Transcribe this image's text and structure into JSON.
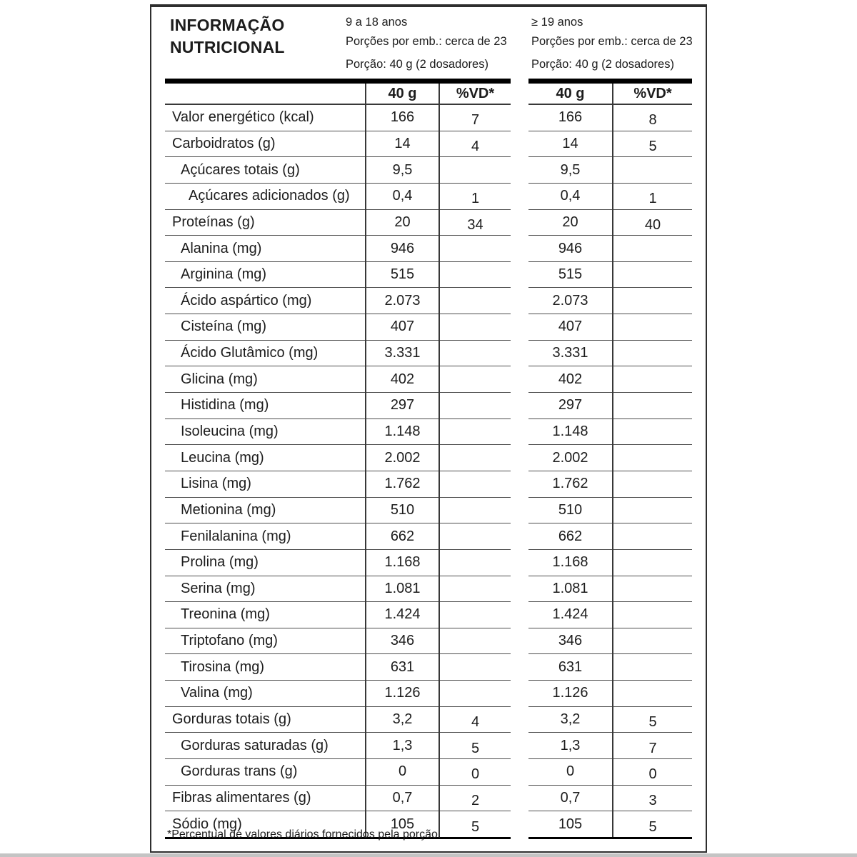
{
  "header": {
    "title": "INFORMAÇÃO NUTRICIONAL"
  },
  "groups": [
    {
      "age_range": "9 a 18 anos",
      "servings_per_pack": "Porções por emb.: cerca de 23",
      "portion": "Porção: 40 g (2 dosadores)"
    },
    {
      "age_range": "≥ 19 anos",
      "servings_per_pack": "Porções por emb.: cerca de 23",
      "portion": "Porção: 40 g (2 dosadores)"
    }
  ],
  "table": {
    "columns": {
      "amount": "40 g",
      "vd": "%VD*"
    },
    "rows": [
      {
        "label": "Valor energético (kcal)",
        "indent": 0,
        "amount": "166",
        "vd_9_18": "7",
        "vd_19": "8"
      },
      {
        "label": "Carboidratos (g)",
        "indent": 0,
        "amount": "14",
        "vd_9_18": "4",
        "vd_19": "5"
      },
      {
        "label": "Açúcares totais (g)",
        "indent": 1,
        "amount": "9,5",
        "vd_9_18": "",
        "vd_19": ""
      },
      {
        "label": "Açúcares adicionados (g)",
        "indent": 2,
        "amount": "0,4",
        "vd_9_18": "1",
        "vd_19": "1"
      },
      {
        "label": "Proteínas (g)",
        "indent": 0,
        "amount": "20",
        "vd_9_18": "34",
        "vd_19": "40"
      },
      {
        "label": "Alanina (mg)",
        "indent": 1,
        "amount": "946",
        "vd_9_18": "",
        "vd_19": ""
      },
      {
        "label": "Arginina (mg)",
        "indent": 1,
        "amount": "515",
        "vd_9_18": "",
        "vd_19": ""
      },
      {
        "label": "Ácido aspártico (mg)",
        "indent": 1,
        "amount": "2.073",
        "vd_9_18": "",
        "vd_19": ""
      },
      {
        "label": "Cisteína (mg)",
        "indent": 1,
        "amount": "407",
        "vd_9_18": "",
        "vd_19": ""
      },
      {
        "label": "Ácido Glutâmico (mg)",
        "indent": 1,
        "amount": "3.331",
        "vd_9_18": "",
        "vd_19": ""
      },
      {
        "label": "Glicina (mg)",
        "indent": 1,
        "amount": "402",
        "vd_9_18": "",
        "vd_19": ""
      },
      {
        "label": "Histidina (mg)",
        "indent": 1,
        "amount": "297",
        "vd_9_18": "",
        "vd_19": ""
      },
      {
        "label": "Isoleucina (mg)",
        "indent": 1,
        "amount": "1.148",
        "vd_9_18": "",
        "vd_19": ""
      },
      {
        "label": "Leucina (mg)",
        "indent": 1,
        "amount": "2.002",
        "vd_9_18": "",
        "vd_19": ""
      },
      {
        "label": "Lisina (mg)",
        "indent": 1,
        "amount": "1.762",
        "vd_9_18": "",
        "vd_19": ""
      },
      {
        "label": "Metionina (mg)",
        "indent": 1,
        "amount": "510",
        "vd_9_18": "",
        "vd_19": ""
      },
      {
        "label": "Fenilalanina (mg)",
        "indent": 1,
        "amount": "662",
        "vd_9_18": "",
        "vd_19": ""
      },
      {
        "label": "Prolina (mg)",
        "indent": 1,
        "amount": "1.168",
        "vd_9_18": "",
        "vd_19": ""
      },
      {
        "label": "Serina (mg)",
        "indent": 1,
        "amount": "1.081",
        "vd_9_18": "",
        "vd_19": ""
      },
      {
        "label": "Treonina (mg)",
        "indent": 1,
        "amount": "1.424",
        "vd_9_18": "",
        "vd_19": ""
      },
      {
        "label": "Triptofano (mg)",
        "indent": 1,
        "amount": "346",
        "vd_9_18": "",
        "vd_19": ""
      },
      {
        "label": "Tirosina (mg)",
        "indent": 1,
        "amount": "631",
        "vd_9_18": "",
        "vd_19": ""
      },
      {
        "label": "Valina (mg)",
        "indent": 1,
        "amount": "1.126",
        "vd_9_18": "",
        "vd_19": ""
      },
      {
        "label": "Gorduras totais (g)",
        "indent": 0,
        "amount": "3,2",
        "vd_9_18": "4",
        "vd_19": "5"
      },
      {
        "label": "Gorduras saturadas (g)",
        "indent": 1,
        "amount": "1,3",
        "vd_9_18": "5",
        "vd_19": "7"
      },
      {
        "label": "Gorduras trans (g)",
        "indent": 1,
        "amount": "0",
        "vd_9_18": "0",
        "vd_19": "0"
      },
      {
        "label": "Fibras alimentares (g)",
        "indent": 0,
        "amount": "0,7",
        "vd_9_18": "2",
        "vd_19": "3"
      },
      {
        "label": "Sódio (mg)",
        "indent": 0,
        "amount": "105",
        "vd_9_18": "5",
        "vd_19": "5"
      }
    ]
  },
  "footnote": "*Percentual de valores diários fornecidos pela porção.",
  "colors": {
    "text": "#1c1c1c",
    "line_thick": "#000000",
    "line_thin": "#4d4d4d",
    "border": "#2e2e2e"
  }
}
